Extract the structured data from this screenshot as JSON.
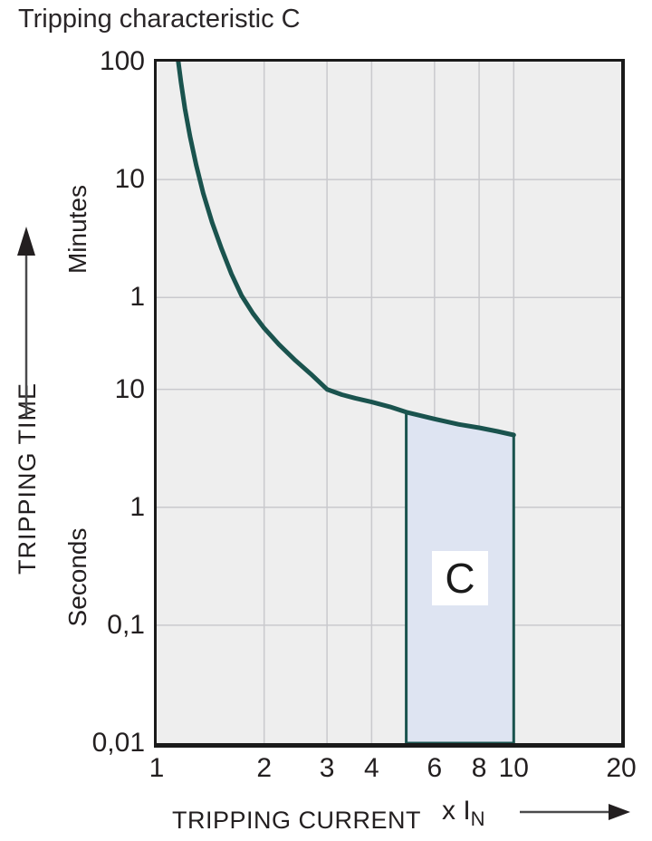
{
  "title": "Tripping characteristic C",
  "y_axis": {
    "label": "TRIPPING TIME",
    "units": [
      "Minutes",
      "Seconds"
    ]
  },
  "x_axis": {
    "label": "TRIPPING CURRENT",
    "multiplier_prefix": "x I",
    "multiplier_sub": "N"
  },
  "region": {
    "label": "C"
  },
  "colors": {
    "curve": "#1a534e",
    "region_fill": "#dee4f2",
    "plot_bg": "#eeeeee",
    "grid": "#c9c9cd",
    "text": "#231f20",
    "arrow_line": "#4a4a4c"
  },
  "chart_data": {
    "type": "line",
    "title": "Tripping characteristic C",
    "xlabel": "TRIPPING CURRENT (x IN)",
    "ylabel": "TRIPPING TIME",
    "x_scale": "log",
    "y_scale": "log",
    "xlim": [
      1,
      20
    ],
    "ylim_seconds": [
      0.01,
      6000
    ],
    "x_ticks": [
      {
        "label": "1",
        "value": 1
      },
      {
        "label": "2",
        "value": 2
      },
      {
        "label": "3",
        "value": 3
      },
      {
        "label": "4",
        "value": 4
      },
      {
        "label": "6",
        "value": 6
      },
      {
        "label": "8",
        "value": 8
      },
      {
        "label": "10",
        "value": 10
      },
      {
        "label": "20",
        "value": 20
      }
    ],
    "y_ticks": [
      {
        "label": "100",
        "unit": "minutes",
        "seconds": 6000
      },
      {
        "label": "10",
        "unit": "minutes",
        "seconds": 600
      },
      {
        "label": "1",
        "unit": "minutes",
        "seconds": 60
      },
      {
        "label": "10",
        "unit": "seconds",
        "seconds": 10
      },
      {
        "label": "1",
        "unit": "seconds",
        "seconds": 1
      },
      {
        "label": "0,1",
        "unit": "seconds",
        "seconds": 0.1
      },
      {
        "label": "0,01",
        "unit": "seconds",
        "seconds": 0.01
      }
    ],
    "x_gridline_values": [
      2,
      3,
      4,
      6,
      8,
      10
    ],
    "grid": true,
    "series": [
      {
        "name": "C tripping curve",
        "points_x_in_vs_seconds": [
          [
            1.14,
            7500
          ],
          [
            1.15,
            6000
          ],
          [
            1.17,
            4000
          ],
          [
            1.2,
            2400
          ],
          [
            1.24,
            1400
          ],
          [
            1.29,
            800
          ],
          [
            1.35,
            460
          ],
          [
            1.43,
            260
          ],
          [
            1.52,
            155
          ],
          [
            1.62,
            95
          ],
          [
            1.73,
            62
          ],
          [
            1.86,
            44
          ],
          [
            2.0,
            33
          ],
          [
            2.2,
            24
          ],
          [
            2.45,
            17.5
          ],
          [
            2.7,
            13.5
          ],
          [
            3.0,
            10
          ],
          [
            3.3,
            9.0
          ],
          [
            3.6,
            8.4
          ],
          [
            4.0,
            7.8
          ],
          [
            4.5,
            7.1
          ],
          [
            5.0,
            6.4
          ],
          [
            6.0,
            5.6
          ],
          [
            7.0,
            5.05
          ],
          [
            8.0,
            4.72
          ],
          [
            9.0,
            4.4
          ],
          [
            10.0,
            4.1
          ]
        ]
      }
    ],
    "trip_region": {
      "label": "C",
      "x_range": [
        5,
        10
      ],
      "bottom_seconds": 0.01,
      "top_boundary_points": [
        [
          5.0,
          6.4
        ],
        [
          6.0,
          5.6
        ],
        [
          7.0,
          5.05
        ],
        [
          8.0,
          4.72
        ],
        [
          9.0,
          4.4
        ],
        [
          10.0,
          4.1
        ]
      ]
    }
  }
}
